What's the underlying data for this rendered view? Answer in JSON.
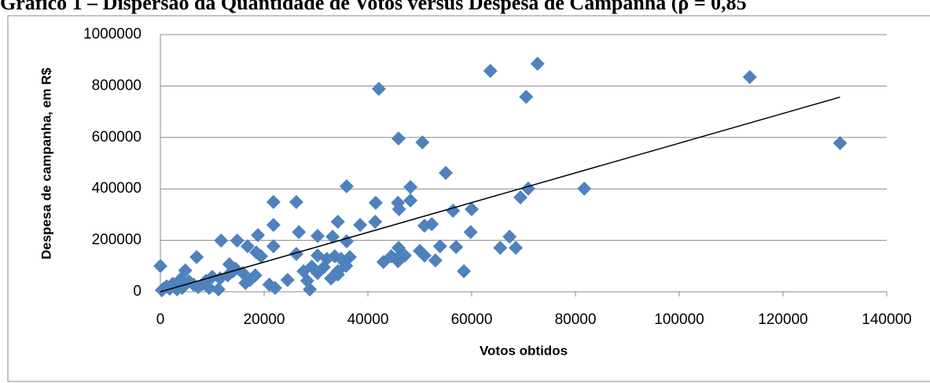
{
  "chart_data": {
    "type": "scatter",
    "title": "Gráfico 1 – Dispersão da Quantidade de Votos versus Despesa de Campanha (ρ = 0,85",
    "xlabel": "Votos obtidos",
    "ylabel": "Despesa de campanha, em R$",
    "xlim": [
      0,
      140000
    ],
    "xticks": [
      0,
      20000,
      40000,
      60000,
      80000,
      100000,
      120000,
      140000
    ],
    "ylim": [
      0,
      1000000
    ],
    "yticks": [
      0,
      200000,
      400000,
      600000,
      800000,
      1000000
    ],
    "grid": true,
    "color": "#4f81bd",
    "x": [
      0,
      42100,
      63600,
      72700,
      70500,
      113600,
      131000,
      45900,
      50500,
      55000,
      35900,
      48200,
      70900,
      81700,
      41500,
      45800,
      46000,
      48200,
      56400,
      60000,
      69400,
      21800,
      26200,
      21800,
      38500,
      34200,
      41400,
      50900,
      52300,
      59800,
      67300,
      68500,
      65500,
      57000,
      58500,
      53900,
      53000,
      50900,
      50000,
      45900,
      46500,
      45800,
      43000,
      35900,
      34800,
      34200,
      32900,
      30300,
      29200,
      28300,
      28800,
      24500,
      22100,
      21000,
      21800,
      18800,
      19400,
      18500,
      18300,
      16800,
      14800,
      11700,
      13300,
      14000,
      8800,
      7000,
      4800,
      3900,
      5500,
      2400,
      1200,
      600,
      300,
      1800,
      3200,
      6400,
      10000,
      11500,
      13000,
      14500,
      15900,
      17300,
      9400,
      11200,
      16400,
      30300,
      30300,
      32100,
      33600,
      33200,
      31500,
      26700,
      26200,
      27600,
      35800,
      36500,
      34200,
      47100,
      44500,
      8200,
      7300,
      4200
    ],
    "values": [
      100000,
      789000,
      859000,
      887000,
      758000,
      835000,
      578000,
      596000,
      581000,
      462000,
      410000,
      407000,
      401000,
      401000,
      346000,
      346000,
      321000,
      355000,
      315000,
      321000,
      367000,
      349000,
      349000,
      260000,
      260000,
      272000,
      272000,
      257000,
      263000,
      232000,
      214000,
      171000,
      171000,
      174000,
      80000,
      177000,
      122000,
      141000,
      159000,
      171000,
      147000,
      119000,
      116000,
      196000,
      128000,
      80000,
      52000,
      73000,
      98000,
      43000,
      9000,
      46000,
      15000,
      28000,
      177000,
      220000,
      138000,
      153000,
      64000,
      177000,
      199000,
      199000,
      107000,
      80000,
      43000,
      135000,
      83000,
      49000,
      40000,
      31000,
      21000,
      12000,
      6000,
      12000,
      9000,
      28000,
      58000,
      52000,
      64000,
      89000,
      73000,
      46000,
      15000,
      9000,
      34000,
      217000,
      141000,
      128000,
      138000,
      214000,
      95000,
      232000,
      147000,
      80000,
      101000,
      135000,
      67000,
      141000,
      138000,
      31000,
      18000,
      15000
    ],
    "trendline": {
      "x": [
        0,
        131000
      ],
      "values": [
        0,
        757000
      ]
    }
  }
}
